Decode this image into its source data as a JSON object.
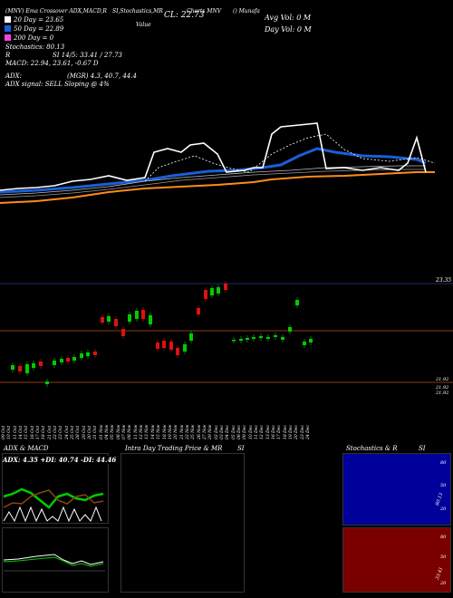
{
  "header": {
    "symbol_line": "(MNV) Ema Crossover ADX,MACD,R",
    "indicators": "SI,Stochastics,MR",
    "cl": "CL: 22.73",
    "chart_note": "Charts MNV",
    "company": "() Munafa",
    "value_note": "Value",
    "avg_vol": "Avg Vol: 0   M",
    "day_vol": "Day Vol: 0   M"
  },
  "ma_legend": [
    {
      "label": "20  Day = 23.65",
      "color": "#ffffff"
    },
    {
      "label": "50  Day = 22.89",
      "color": "#1a5fd8"
    },
    {
      "label": "200  Day = 0",
      "color": "#ee44dd"
    }
  ],
  "stats": {
    "stochastics": "Stochastics: 80.13",
    "r_label": "R",
    "si": "SI 14/5: 33.41 / 27.73",
    "macd": "MACD: 22.94,  23.61, -0.67 D",
    "adx": "ADX:",
    "mgr": "(MGR) 4.3,  40.7,  44.4",
    "adx_signal": "ADX  signal: SELL  Sloping @ 4%"
  },
  "price_axis": {
    "top_label": "23.35",
    "low_labels": [
      "21.92",
      "21.92",
      "21.92"
    ]
  },
  "x_labels": [
    "09 Oct",
    "10 Oct",
    "11 Oct",
    "14 Oct",
    "15 Oct",
    "16 Oct",
    "17 Oct",
    "18 Oct",
    "21 Oct",
    "22 Oct",
    "23 Oct",
    "24 Oct",
    "25 Oct",
    "28 Oct",
    "29 Oct",
    "30 Oct",
    "31 Oct",
    "01 Nov",
    "04 Nov",
    "05 Nov",
    "06 Nov",
    "07 Nov",
    "08 Nov",
    "11 Nov",
    "12 Nov",
    "13 Nov",
    "14 Nov",
    "15 Nov",
    "18 Nov",
    "19 Nov",
    "20 Nov",
    "21 Nov",
    "22 Nov",
    "25 Nov",
    "26 Nov",
    "27 Nov",
    "29 Nov",
    "02 Dec",
    "03 Dec",
    "04 Dec",
    "05 Dec",
    "06 Dec",
    "09 Dec",
    "10 Dec",
    "11 Dec",
    "12 Dec",
    "13 Dec",
    "16 Dec",
    "17 Dec",
    "18 Dec",
    "19 Dec",
    "20 Dec",
    "23 Dec",
    "24 Dec"
  ],
  "panels": {
    "adx_title": "ADX  & MACD",
    "adx_values": "ADX: 4.35  +DI: 40.74  -DI: 44.46",
    "intraday_title": "Intra  Day Trading Price  & MR",
    "intraday_si": "SI",
    "stoch_title": "Stochastics & R",
    "stoch_si": "SI",
    "stoch_scale": [
      "80",
      "50",
      "20"
    ],
    "stoch_value": "80.13",
    "si_scale": [
      "80",
      "50",
      "20"
    ],
    "si_value": "33.41"
  },
  "colors": {
    "bullish": "#00cc00",
    "bearish": "#dd1111",
    "ma20": "#ffffff",
    "ma50": "#1a5fd8",
    "ma200": "#ee44dd",
    "orange": "#ff8c1a",
    "brown_line": "#8b3a1a",
    "panel_red": "#7a0000"
  }
}
